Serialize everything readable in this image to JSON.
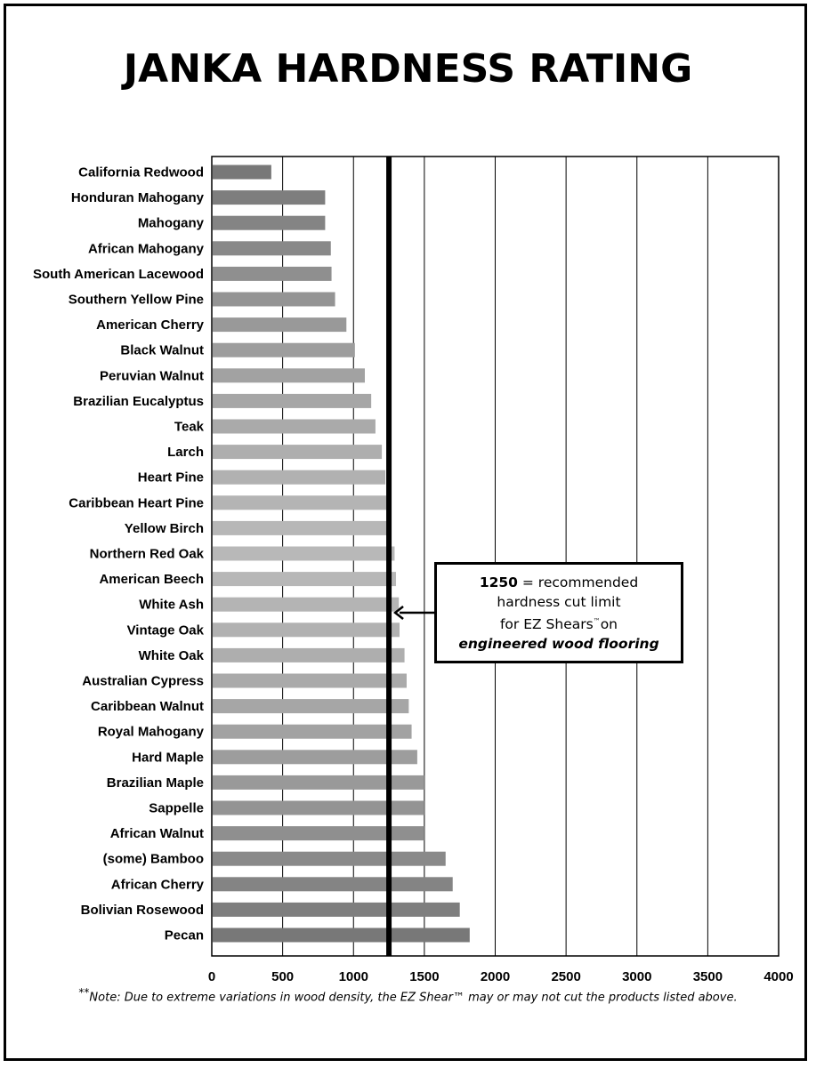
{
  "title": "JANKA HARDNESS RATING",
  "chart_data": {
    "type": "bar",
    "orientation": "horizontal",
    "title": "JANKA HARDNESS RATING",
    "xlim": [
      0,
      4000
    ],
    "xticks": [
      "0",
      "500",
      "1000",
      "1500",
      "2000",
      "2500",
      "3000",
      "3500",
      "4000"
    ],
    "grid": true,
    "reference_line": 1250,
    "categories": [
      "California Redwood",
      "Honduran Mahogany",
      "Mahogany",
      "African Mahogany",
      "South American Lacewood",
      "Southern Yellow Pine",
      "American Cherry",
      "Black Walnut",
      "Peruvian Walnut",
      "Brazilian Eucalyptus",
      "Teak",
      "Larch",
      "Heart Pine",
      "Caribbean Heart Pine",
      "Yellow Birch",
      "Northern Red Oak",
      "American Beech",
      "White Ash",
      "Vintage Oak",
      "White Oak",
      "Australian Cypress",
      "Caribbean Walnut",
      "Royal Mahogany",
      "Hard Maple",
      "Brazilian Maple",
      "Sappelle",
      "African Walnut",
      "(some) Bamboo",
      "African Cherry",
      "Bolivian Rosewood",
      "Pecan"
    ],
    "values": [
      420,
      800,
      800,
      840,
      845,
      870,
      950,
      1010,
      1080,
      1125,
      1155,
      1200,
      1225,
      1240,
      1260,
      1290,
      1300,
      1320,
      1325,
      1360,
      1375,
      1390,
      1410,
      1450,
      1500,
      1500,
      1500,
      1650,
      1700,
      1750,
      1820
    ],
    "colors": {
      "bar_dark": "#787878",
      "bar_light": "#b8b8b8",
      "grid": "#000000",
      "reference_line": "#000000"
    }
  },
  "callout": {
    "number": "1250",
    "line1_rest": " = recommended",
    "line2": "hardness cut limit",
    "line3": "for EZ Shears",
    "tm_small": "™",
    "line3_end": "on",
    "line4": "engineered wood flooring"
  },
  "note": {
    "stars": "**",
    "text": "Note: Due to extreme variations in wood density, the EZ Shear™ may or may not cut the products listed above."
  }
}
